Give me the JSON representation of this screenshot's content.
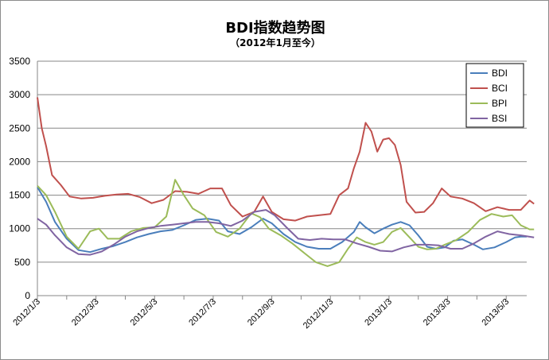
{
  "chart_data": {
    "type": "line",
    "title": "BDI指数趋势图",
    "subtitle": "（2012年1月至今）",
    "xlabel": "",
    "ylabel": "",
    "ylim": [
      0,
      3500
    ],
    "y_ticks": [
      0,
      500,
      1000,
      1500,
      2000,
      2500,
      3000,
      3500
    ],
    "x_tick_labels": [
      "2012/1/3",
      "2012/3/3",
      "2012/5/3",
      "2012/7/3",
      "2012/9/3",
      "2012/11/3",
      "2013/1/3",
      "2013/3/3",
      "2013/5/3"
    ],
    "x_range_months": [
      0,
      16.7
    ],
    "grid": "horizontal",
    "legend_position": "top-right",
    "series": [
      {
        "name": "BDI",
        "color": "#4a7ebb",
        "points": [
          [
            0,
            1620
          ],
          [
            0.3,
            1400
          ],
          [
            0.6,
            1100
          ],
          [
            1.0,
            850
          ],
          [
            1.4,
            680
          ],
          [
            1.8,
            650
          ],
          [
            2.2,
            700
          ],
          [
            2.6,
            740
          ],
          [
            3.0,
            800
          ],
          [
            3.4,
            870
          ],
          [
            3.8,
            920
          ],
          [
            4.2,
            960
          ],
          [
            4.6,
            980
          ],
          [
            5.0,
            1050
          ],
          [
            5.4,
            1130
          ],
          [
            5.8,
            1150
          ],
          [
            6.2,
            1120
          ],
          [
            6.5,
            960
          ],
          [
            6.9,
            920
          ],
          [
            7.3,
            1020
          ],
          [
            7.7,
            1150
          ],
          [
            8.0,
            1080
          ],
          [
            8.4,
            920
          ],
          [
            8.8,
            800
          ],
          [
            9.2,
            730
          ],
          [
            9.6,
            700
          ],
          [
            10.0,
            700
          ],
          [
            10.4,
            800
          ],
          [
            10.8,
            950
          ],
          [
            11.0,
            1100
          ],
          [
            11.2,
            1020
          ],
          [
            11.5,
            930
          ],
          [
            11.8,
            1000
          ],
          [
            12.1,
            1060
          ],
          [
            12.4,
            1100
          ],
          [
            12.7,
            1050
          ],
          [
            13.0,
            900
          ],
          [
            13.3,
            730
          ],
          [
            13.6,
            700
          ],
          [
            13.9,
            720
          ],
          [
            14.2,
            820
          ],
          [
            14.5,
            840
          ],
          [
            14.9,
            760
          ],
          [
            15.2,
            690
          ],
          [
            15.6,
            720
          ],
          [
            16.0,
            800
          ],
          [
            16.3,
            870
          ],
          [
            16.5,
            880
          ],
          [
            16.7,
            880
          ]
        ]
      },
      {
        "name": "BCI",
        "color": "#c0504d",
        "points": [
          [
            0,
            2960
          ],
          [
            0.15,
            2500
          ],
          [
            0.3,
            2230
          ],
          [
            0.5,
            1800
          ],
          [
            0.8,
            1650
          ],
          [
            1.1,
            1480
          ],
          [
            1.5,
            1450
          ],
          [
            1.9,
            1460
          ],
          [
            2.3,
            1490
          ],
          [
            2.7,
            1510
          ],
          [
            3.1,
            1520
          ],
          [
            3.5,
            1470
          ],
          [
            3.9,
            1380
          ],
          [
            4.3,
            1430
          ],
          [
            4.7,
            1560
          ],
          [
            5.1,
            1550
          ],
          [
            5.5,
            1520
          ],
          [
            5.9,
            1600
          ],
          [
            6.3,
            1600
          ],
          [
            6.6,
            1350
          ],
          [
            7.0,
            1180
          ],
          [
            7.4,
            1250
          ],
          [
            7.7,
            1480
          ],
          [
            8.0,
            1250
          ],
          [
            8.4,
            1140
          ],
          [
            8.8,
            1120
          ],
          [
            9.2,
            1180
          ],
          [
            9.6,
            1200
          ],
          [
            10.0,
            1220
          ],
          [
            10.3,
            1500
          ],
          [
            10.6,
            1600
          ],
          [
            10.8,
            1900
          ],
          [
            11.0,
            2150
          ],
          [
            11.2,
            2580
          ],
          [
            11.4,
            2450
          ],
          [
            11.6,
            2150
          ],
          [
            11.8,
            2330
          ],
          [
            12.0,
            2350
          ],
          [
            12.2,
            2250
          ],
          [
            12.4,
            1950
          ],
          [
            12.6,
            1400
          ],
          [
            12.9,
            1240
          ],
          [
            13.2,
            1250
          ],
          [
            13.5,
            1380
          ],
          [
            13.8,
            1600
          ],
          [
            14.1,
            1480
          ],
          [
            14.5,
            1450
          ],
          [
            14.9,
            1380
          ],
          [
            15.3,
            1260
          ],
          [
            15.7,
            1320
          ],
          [
            16.1,
            1280
          ],
          [
            16.5,
            1280
          ],
          [
            16.8,
            1420
          ],
          [
            16.95,
            1370
          ]
        ]
      },
      {
        "name": "BPI",
        "color": "#9bbb59",
        "points": [
          [
            0,
            1640
          ],
          [
            0.3,
            1500
          ],
          [
            0.6,
            1250
          ],
          [
            1.0,
            880
          ],
          [
            1.4,
            700
          ],
          [
            1.8,
            960
          ],
          [
            2.1,
            1000
          ],
          [
            2.4,
            850
          ],
          [
            2.8,
            850
          ],
          [
            3.2,
            960
          ],
          [
            3.6,
            1010
          ],
          [
            4.0,
            1020
          ],
          [
            4.4,
            1180
          ],
          [
            4.7,
            1730
          ],
          [
            5.0,
            1500
          ],
          [
            5.3,
            1300
          ],
          [
            5.7,
            1200
          ],
          [
            6.1,
            950
          ],
          [
            6.5,
            880
          ],
          [
            6.9,
            1000
          ],
          [
            7.3,
            1230
          ],
          [
            7.6,
            1170
          ],
          [
            7.9,
            1000
          ],
          [
            8.3,
            900
          ],
          [
            8.7,
            780
          ],
          [
            9.1,
            640
          ],
          [
            9.5,
            500
          ],
          [
            9.9,
            440
          ],
          [
            10.3,
            500
          ],
          [
            10.6,
            700
          ],
          [
            10.9,
            870
          ],
          [
            11.2,
            800
          ],
          [
            11.5,
            760
          ],
          [
            11.8,
            800
          ],
          [
            12.1,
            950
          ],
          [
            12.4,
            1010
          ],
          [
            12.7,
            870
          ],
          [
            13.0,
            730
          ],
          [
            13.3,
            690
          ],
          [
            13.6,
            700
          ],
          [
            13.9,
            760
          ],
          [
            14.3,
            830
          ],
          [
            14.7,
            950
          ],
          [
            15.1,
            1130
          ],
          [
            15.5,
            1220
          ],
          [
            15.9,
            1180
          ],
          [
            16.2,
            1200
          ],
          [
            16.5,
            1050
          ],
          [
            16.8,
            990
          ],
          [
            16.95,
            990
          ]
        ]
      },
      {
        "name": "BSI",
        "color": "#8064a2",
        "points": [
          [
            0,
            1150
          ],
          [
            0.3,
            1060
          ],
          [
            0.6,
            900
          ],
          [
            1.0,
            720
          ],
          [
            1.4,
            620
          ],
          [
            1.8,
            610
          ],
          [
            2.2,
            660
          ],
          [
            2.6,
            760
          ],
          [
            3.0,
            880
          ],
          [
            3.4,
            960
          ],
          [
            3.8,
            1010
          ],
          [
            4.2,
            1040
          ],
          [
            4.6,
            1060
          ],
          [
            5.0,
            1080
          ],
          [
            5.4,
            1100
          ],
          [
            5.8,
            1100
          ],
          [
            6.2,
            1080
          ],
          [
            6.6,
            1040
          ],
          [
            7.0,
            1120
          ],
          [
            7.4,
            1250
          ],
          [
            7.8,
            1280
          ],
          [
            8.1,
            1200
          ],
          [
            8.5,
            1020
          ],
          [
            8.9,
            850
          ],
          [
            9.3,
            830
          ],
          [
            9.7,
            850
          ],
          [
            10.1,
            840
          ],
          [
            10.5,
            840
          ],
          [
            10.9,
            780
          ],
          [
            11.3,
            730
          ],
          [
            11.7,
            670
          ],
          [
            12.1,
            660
          ],
          [
            12.5,
            720
          ],
          [
            12.9,
            760
          ],
          [
            13.3,
            760
          ],
          [
            13.7,
            750
          ],
          [
            14.1,
            700
          ],
          [
            14.5,
            700
          ],
          [
            14.9,
            780
          ],
          [
            15.3,
            880
          ],
          [
            15.7,
            960
          ],
          [
            16.1,
            920
          ],
          [
            16.5,
            900
          ],
          [
            16.95,
            870
          ]
        ]
      }
    ]
  }
}
